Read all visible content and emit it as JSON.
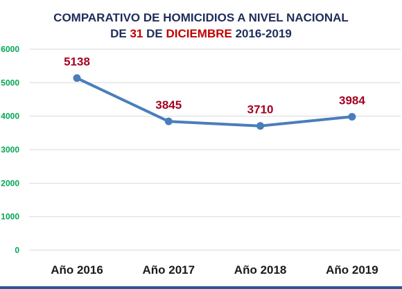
{
  "title": {
    "line1": "COMPARATIVO DE HOMICIDIOS A NIVEL NACIONAL",
    "line2_prefix": "DE ",
    "line2_day": "31",
    "line2_mid": " DE ",
    "line2_month": "DICIEMBRE",
    "line2_suffix": " 2016-2019"
  },
  "colors": {
    "title": "#1f2d5a",
    "title_highlight": "#c00000",
    "series": "#4a7ebb",
    "data_labels": "#a50021",
    "y_ticks": "#00a651",
    "grid": "#d9d9d9",
    "bottom_bar": "#2f5597"
  },
  "chart_data": {
    "type": "line",
    "categories": [
      "Año 2016",
      "Año 2017",
      "Año 2018",
      "Año 2019"
    ],
    "series": [
      {
        "values": [
          5138,
          3845,
          3710,
          3984
        ]
      }
    ],
    "data_labels": [
      "5138",
      "3845",
      "3710",
      "3984"
    ],
    "ylim": [
      0,
      6000
    ],
    "yticks": [
      0,
      1000,
      2000,
      3000,
      4000,
      5000,
      6000
    ],
    "ytick_labels": [
      "0",
      "1000",
      "2000",
      "3000",
      "4000",
      "5000",
      "6000"
    ],
    "grid": true,
    "legend": "none",
    "markers": "circle"
  }
}
